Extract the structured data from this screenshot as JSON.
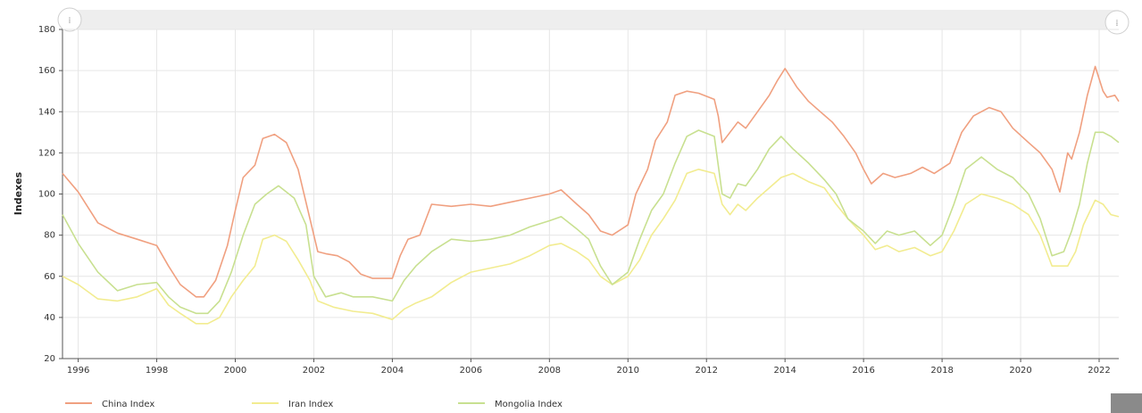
{
  "chart_data": {
    "type": "line",
    "title": "",
    "xlabel": "",
    "ylabel": "Indexes",
    "xlim": [
      1995.6,
      2022.5
    ],
    "ylim": [
      20,
      180
    ],
    "y_ticks": [
      20,
      40,
      60,
      80,
      100,
      120,
      140,
      160,
      180
    ],
    "x_ticks": [
      1996,
      1998,
      2000,
      2002,
      2004,
      2006,
      2008,
      2010,
      2012,
      2014,
      2016,
      2018,
      2020,
      2022
    ],
    "grid": true,
    "legend_position": "bottom-left",
    "series": [
      {
        "name": "China Index",
        "color": "#f0a080",
        "points": [
          [
            1995.6,
            110
          ],
          [
            1996,
            101
          ],
          [
            1996.5,
            86
          ],
          [
            1997,
            81
          ],
          [
            1997.5,
            78
          ],
          [
            1998,
            75
          ],
          [
            1998.3,
            65
          ],
          [
            1998.6,
            56
          ],
          [
            1999,
            50
          ],
          [
            1999.2,
            50
          ],
          [
            1999.5,
            58
          ],
          [
            1999.8,
            75
          ],
          [
            2000,
            92
          ],
          [
            2000.2,
            108
          ],
          [
            2000.5,
            114
          ],
          [
            2000.7,
            127
          ],
          [
            2001,
            129
          ],
          [
            2001.3,
            125
          ],
          [
            2001.6,
            112
          ],
          [
            2001.9,
            88
          ],
          [
            2002.1,
            72
          ],
          [
            2002.3,
            71
          ],
          [
            2002.6,
            70
          ],
          [
            2002.9,
            67
          ],
          [
            2003.2,
            61
          ],
          [
            2003.5,
            59
          ],
          [
            2003.8,
            59
          ],
          [
            2004,
            59
          ],
          [
            2004.2,
            70
          ],
          [
            2004.4,
            78
          ],
          [
            2004.7,
            80
          ],
          [
            2005,
            95
          ],
          [
            2005.5,
            94
          ],
          [
            2006,
            95
          ],
          [
            2006.5,
            94
          ],
          [
            2007,
            96
          ],
          [
            2007.5,
            98
          ],
          [
            2008,
            100
          ],
          [
            2008.3,
            102
          ],
          [
            2008.7,
            95
          ],
          [
            2009,
            90
          ],
          [
            2009.3,
            82
          ],
          [
            2009.6,
            80
          ],
          [
            2010,
            85
          ],
          [
            2010.2,
            100
          ],
          [
            2010.5,
            112
          ],
          [
            2010.7,
            126
          ],
          [
            2011,
            135
          ],
          [
            2011.2,
            148
          ],
          [
            2011.5,
            150
          ],
          [
            2011.8,
            149
          ],
          [
            2012.2,
            146
          ],
          [
            2012.3,
            138
          ],
          [
            2012.4,
            125
          ],
          [
            2012.6,
            130
          ],
          [
            2012.8,
            135
          ],
          [
            2013,
            132
          ],
          [
            2013.3,
            140
          ],
          [
            2013.6,
            148
          ],
          [
            2013.8,
            155
          ],
          [
            2014,
            161
          ],
          [
            2014.3,
            152
          ],
          [
            2014.6,
            145
          ],
          [
            2014.9,
            140
          ],
          [
            2015.2,
            135
          ],
          [
            2015.5,
            128
          ],
          [
            2015.8,
            120
          ],
          [
            2016,
            112
          ],
          [
            2016.2,
            105
          ],
          [
            2016.5,
            110
          ],
          [
            2016.8,
            108
          ],
          [
            2017.2,
            110
          ],
          [
            2017.5,
            113
          ],
          [
            2017.8,
            110
          ],
          [
            2018.2,
            115
          ],
          [
            2018.5,
            130
          ],
          [
            2018.8,
            138
          ],
          [
            2019.2,
            142
          ],
          [
            2019.5,
            140
          ],
          [
            2019.8,
            132
          ],
          [
            2020.2,
            125
          ],
          [
            2020.5,
            120
          ],
          [
            2020.8,
            112
          ],
          [
            2021,
            101
          ],
          [
            2021.2,
            120
          ],
          [
            2021.3,
            117
          ],
          [
            2021.5,
            130
          ],
          [
            2021.7,
            148
          ],
          [
            2021.9,
            162
          ],
          [
            2022.1,
            150
          ],
          [
            2022.2,
            147
          ],
          [
            2022.4,
            148
          ],
          [
            2022.5,
            145
          ]
        ]
      },
      {
        "name": "Iran Index",
        "color": "#f2ec90",
        "points": [
          [
            1995.6,
            60
          ],
          [
            1996,
            56
          ],
          [
            1996.5,
            49
          ],
          [
            1997,
            48
          ],
          [
            1997.5,
            50
          ],
          [
            1998,
            54
          ],
          [
            1998.3,
            46
          ],
          [
            1998.6,
            42
          ],
          [
            1999,
            37
          ],
          [
            1999.3,
            37
          ],
          [
            1999.6,
            40
          ],
          [
            1999.9,
            50
          ],
          [
            2000.2,
            58
          ],
          [
            2000.5,
            65
          ],
          [
            2000.7,
            78
          ],
          [
            2001,
            80
          ],
          [
            2001.3,
            77
          ],
          [
            2001.6,
            68
          ],
          [
            2001.9,
            58
          ],
          [
            2002.1,
            48
          ],
          [
            2002.5,
            45
          ],
          [
            2003,
            43
          ],
          [
            2003.5,
            42
          ],
          [
            2004,
            39
          ],
          [
            2004.3,
            44
          ],
          [
            2004.6,
            47
          ],
          [
            2005,
            50
          ],
          [
            2005.5,
            57
          ],
          [
            2006,
            62
          ],
          [
            2006.5,
            64
          ],
          [
            2007,
            66
          ],
          [
            2007.5,
            70
          ],
          [
            2008,
            75
          ],
          [
            2008.3,
            76
          ],
          [
            2008.7,
            72
          ],
          [
            2009,
            68
          ],
          [
            2009.3,
            60
          ],
          [
            2009.6,
            56
          ],
          [
            2010,
            60
          ],
          [
            2010.3,
            68
          ],
          [
            2010.6,
            80
          ],
          [
            2010.9,
            88
          ],
          [
            2011.2,
            97
          ],
          [
            2011.5,
            110
          ],
          [
            2011.8,
            112
          ],
          [
            2012.2,
            110
          ],
          [
            2012.4,
            95
          ],
          [
            2012.6,
            90
          ],
          [
            2012.8,
            95
          ],
          [
            2013,
            92
          ],
          [
            2013.3,
            98
          ],
          [
            2013.6,
            103
          ],
          [
            2013.9,
            108
          ],
          [
            2014.2,
            110
          ],
          [
            2014.6,
            106
          ],
          [
            2015,
            103
          ],
          [
            2015.3,
            95
          ],
          [
            2015.6,
            88
          ],
          [
            2016,
            80
          ],
          [
            2016.3,
            73
          ],
          [
            2016.6,
            75
          ],
          [
            2016.9,
            72
          ],
          [
            2017.3,
            74
          ],
          [
            2017.7,
            70
          ],
          [
            2018,
            72
          ],
          [
            2018.3,
            82
          ],
          [
            2018.6,
            95
          ],
          [
            2019,
            100
          ],
          [
            2019.4,
            98
          ],
          [
            2019.8,
            95
          ],
          [
            2020.2,
            90
          ],
          [
            2020.5,
            80
          ],
          [
            2020.8,
            65
          ],
          [
            2021.2,
            65
          ],
          [
            2021.4,
            72
          ],
          [
            2021.6,
            85
          ],
          [
            2021.9,
            97
          ],
          [
            2022.1,
            95
          ],
          [
            2022.3,
            90
          ],
          [
            2022.5,
            89
          ]
        ]
      },
      {
        "name": "Mongolia Index",
        "color": "#c8e090",
        "points": [
          [
            1995.6,
            90
          ],
          [
            1996,
            76
          ],
          [
            1996.5,
            62
          ],
          [
            1997,
            53
          ],
          [
            1997.5,
            56
          ],
          [
            1998,
            57
          ],
          [
            1998.3,
            50
          ],
          [
            1998.6,
            45
          ],
          [
            1999,
            42
          ],
          [
            1999.3,
            42
          ],
          [
            1999.6,
            48
          ],
          [
            1999.9,
            62
          ],
          [
            2000.2,
            80
          ],
          [
            2000.5,
            95
          ],
          [
            2000.8,
            100
          ],
          [
            2001.1,
            104
          ],
          [
            2001.5,
            98
          ],
          [
            2001.8,
            85
          ],
          [
            2002,
            60
          ],
          [
            2002.3,
            50
          ],
          [
            2002.7,
            52
          ],
          [
            2003,
            50
          ],
          [
            2003.5,
            50
          ],
          [
            2004,
            48
          ],
          [
            2004.3,
            58
          ],
          [
            2004.6,
            65
          ],
          [
            2005,
            72
          ],
          [
            2005.5,
            78
          ],
          [
            2006,
            77
          ],
          [
            2006.5,
            78
          ],
          [
            2007,
            80
          ],
          [
            2007.5,
            84
          ],
          [
            2008,
            87
          ],
          [
            2008.3,
            89
          ],
          [
            2008.7,
            83
          ],
          [
            2009,
            78
          ],
          [
            2009.3,
            65
          ],
          [
            2009.6,
            56
          ],
          [
            2010,
            62
          ],
          [
            2010.3,
            78
          ],
          [
            2010.6,
            92
          ],
          [
            2010.9,
            100
          ],
          [
            2011.2,
            115
          ],
          [
            2011.5,
            128
          ],
          [
            2011.8,
            131
          ],
          [
            2012.2,
            128
          ],
          [
            2012.4,
            100
          ],
          [
            2012.6,
            98
          ],
          [
            2012.8,
            105
          ],
          [
            2013,
            104
          ],
          [
            2013.3,
            112
          ],
          [
            2013.6,
            122
          ],
          [
            2013.9,
            128
          ],
          [
            2014.2,
            122
          ],
          [
            2014.6,
            115
          ],
          [
            2015,
            107
          ],
          [
            2015.3,
            100
          ],
          [
            2015.6,
            88
          ],
          [
            2016,
            82
          ],
          [
            2016.3,
            76
          ],
          [
            2016.6,
            82
          ],
          [
            2016.9,
            80
          ],
          [
            2017.3,
            82
          ],
          [
            2017.7,
            75
          ],
          [
            2018,
            80
          ],
          [
            2018.3,
            95
          ],
          [
            2018.6,
            112
          ],
          [
            2019,
            118
          ],
          [
            2019.4,
            112
          ],
          [
            2019.8,
            108
          ],
          [
            2020.2,
            100
          ],
          [
            2020.5,
            88
          ],
          [
            2020.8,
            70
          ],
          [
            2021.1,
            72
          ],
          [
            2021.3,
            82
          ],
          [
            2021.5,
            95
          ],
          [
            2021.7,
            115
          ],
          [
            2021.9,
            130
          ],
          [
            2022.1,
            130
          ],
          [
            2022.3,
            128
          ],
          [
            2022.5,
            125
          ]
        ]
      }
    ]
  },
  "scrollbar": {
    "left_handle_glyph": "⁞",
    "right_handle_glyph": "⁞"
  }
}
